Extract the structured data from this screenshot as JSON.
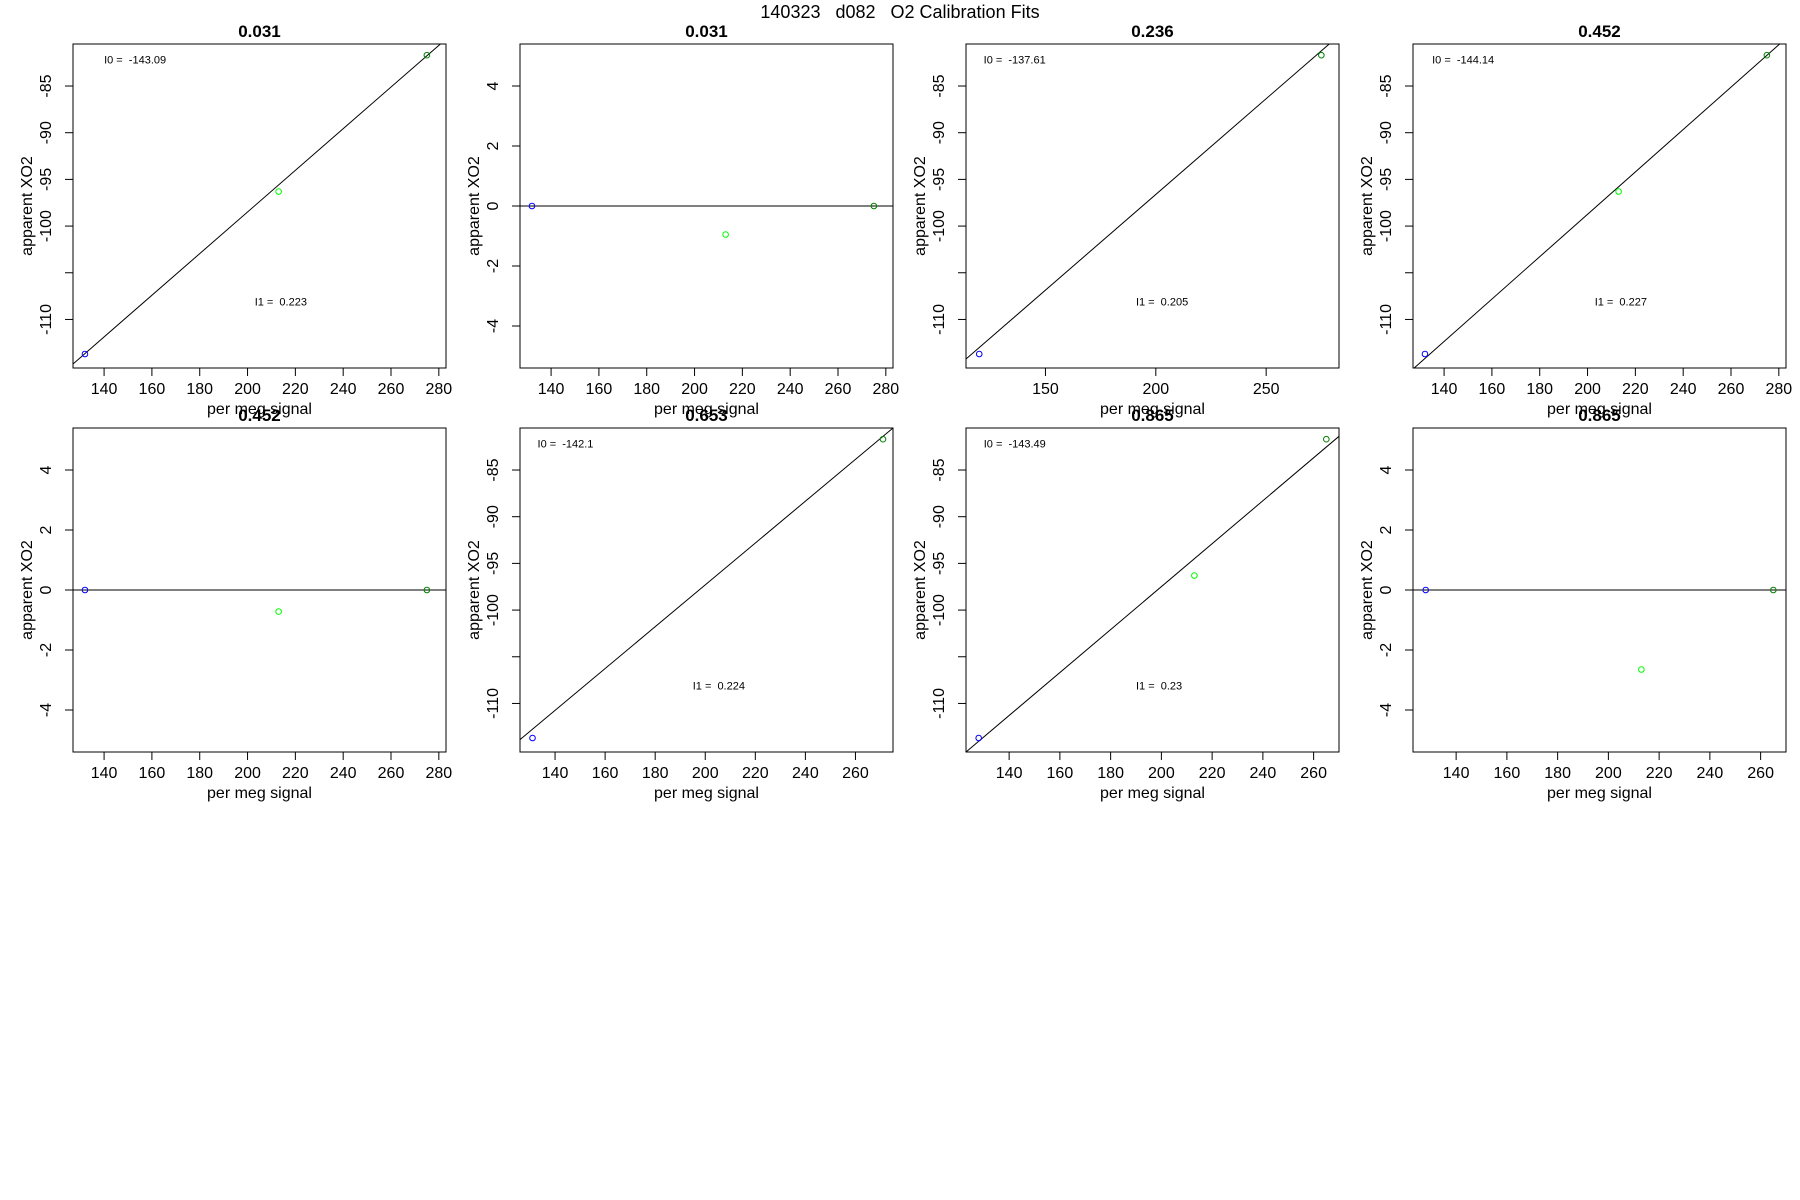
{
  "figure_title": "140323   d082   O2 Calibration Fits",
  "colors": {
    "axis": "#000000",
    "fit_line": "#000000",
    "point_blue": "#0000ff",
    "point_green": "#00ff00",
    "point_darkgreen": "#008000"
  },
  "chart_data": [
    {
      "type": "scatter",
      "title": "0.031",
      "xlabel": "per meg signal",
      "ylabel": "apparent XO2",
      "xlim": [
        127,
        283
      ],
      "ylim": [
        -115.2,
        -80.5
      ],
      "xticks": [
        140,
        160,
        180,
        200,
        220,
        240,
        260,
        280
      ],
      "yticks": [
        -110,
        -105,
        -100,
        -95,
        -90,
        -85
      ],
      "ytick_labels": [
        "-110",
        "",
        "-100",
        "-95",
        "-90",
        "-85"
      ],
      "points": [
        {
          "x": 132,
          "y": -113.7,
          "color": "blue"
        },
        {
          "x": 213,
          "y": -96.3,
          "color": "green"
        },
        {
          "x": 275,
          "y": -81.7,
          "color": "darkgreen"
        }
      ],
      "fit_line": {
        "intercept": -143.09,
        "slope": 0.223
      },
      "annotations": [
        {
          "label": "I0 = ",
          "value": "-143.09",
          "x": 140,
          "y": -82.6
        },
        {
          "label": "I1 = ",
          "value": "0.223",
          "x": 203,
          "y": -108.5
        }
      ]
    },
    {
      "type": "scatter",
      "title": "0.031",
      "xlabel": "per meg signal",
      "ylabel": "apparent XO2",
      "xlim": [
        127,
        283
      ],
      "ylim": [
        -5.4,
        5.4
      ],
      "xticks": [
        140,
        160,
        180,
        200,
        220,
        240,
        260,
        280
      ],
      "yticks": [
        -4,
        -2,
        0,
        2,
        4
      ],
      "ytick_labels": [
        "-4",
        "-2",
        "0",
        "2",
        "4"
      ],
      "points": [
        {
          "x": 132,
          "y": 0,
          "color": "blue"
        },
        {
          "x": 213,
          "y": -0.95,
          "color": "green"
        },
        {
          "x": 275,
          "y": 0,
          "color": "darkgreen"
        }
      ],
      "fit_line": {
        "intercept": 0,
        "slope": 0
      },
      "annotations": []
    },
    {
      "type": "scatter",
      "title": "0.236",
      "xlabel": "per meg signal",
      "ylabel": "apparent XO2",
      "xlim": [
        114,
        283
      ],
      "ylim": [
        -115.2,
        -80.5
      ],
      "xticks": [
        150,
        200,
        250
      ],
      "yticks": [
        -110,
        -105,
        -100,
        -95,
        -90,
        -85
      ],
      "ytick_labels": [
        "-110",
        "",
        "-100",
        "-95",
        "-90",
        "-85"
      ],
      "points": [
        {
          "x": 120,
          "y": -113.7,
          "color": "blue"
        },
        {
          "x": 275,
          "y": -81.7,
          "color": "darkgreen"
        }
      ],
      "fit_line": {
        "intercept": -137.61,
        "slope": 0.205
      },
      "annotations": [
        {
          "label": "I0 = ",
          "value": "-137.61",
          "x": 122,
          "y": -82.6
        },
        {
          "label": "I1 = ",
          "value": "0.205",
          "x": 191,
          "y": -108.5
        }
      ]
    },
    {
      "type": "scatter",
      "title": "0.452",
      "xlabel": "per meg signal",
      "ylabel": "apparent XO2",
      "xlim": [
        127,
        283
      ],
      "ylim": [
        -115.2,
        -80.5
      ],
      "xticks": [
        140,
        160,
        180,
        200,
        220,
        240,
        260,
        280
      ],
      "yticks": [
        -110,
        -105,
        -100,
        -95,
        -90,
        -85
      ],
      "ytick_labels": [
        "-110",
        "",
        "-100",
        "-95",
        "-90",
        "-85"
      ],
      "points": [
        {
          "x": 132,
          "y": -113.7,
          "color": "blue"
        },
        {
          "x": 213,
          "y": -96.3,
          "color": "green"
        },
        {
          "x": 275,
          "y": -81.7,
          "color": "darkgreen"
        }
      ],
      "fit_line": {
        "intercept": -144.14,
        "slope": 0.227
      },
      "annotations": [
        {
          "label": "I0 = ",
          "value": "-144.14",
          "x": 135,
          "y": -82.6
        },
        {
          "label": "I1 = ",
          "value": "0.227",
          "x": 203,
          "y": -108.5
        }
      ]
    },
    {
      "type": "scatter",
      "title": "0.452",
      "xlabel": "per meg signal",
      "ylabel": "apparent XO2",
      "xlim": [
        127,
        283
      ],
      "ylim": [
        -5.4,
        5.4
      ],
      "xticks": [
        140,
        160,
        180,
        200,
        220,
        240,
        260,
        280
      ],
      "yticks": [
        -4,
        -2,
        0,
        2,
        4
      ],
      "ytick_labels": [
        "-4",
        "-2",
        "0",
        "2",
        "4"
      ],
      "points": [
        {
          "x": 132,
          "y": 0,
          "color": "blue"
        },
        {
          "x": 213,
          "y": -0.72,
          "color": "green"
        },
        {
          "x": 275,
          "y": 0,
          "color": "darkgreen"
        }
      ],
      "fit_line": {
        "intercept": 0,
        "slope": 0
      },
      "annotations": []
    },
    {
      "type": "scatter",
      "title": "0.653",
      "xlabel": "per meg signal",
      "ylabel": "apparent XO2",
      "xlim": [
        126,
        275
      ],
      "ylim": [
        -115.2,
        -80.5
      ],
      "xticks": [
        140,
        160,
        180,
        200,
        220,
        240,
        260
      ],
      "yticks": [
        -110,
        -105,
        -100,
        -95,
        -90,
        -85
      ],
      "ytick_labels": [
        "-110",
        "",
        "-100",
        "-95",
        "-90",
        "-85"
      ],
      "points": [
        {
          "x": 131,
          "y": -113.7,
          "color": "blue"
        },
        {
          "x": 271,
          "y": -81.7,
          "color": "darkgreen"
        }
      ],
      "fit_line": {
        "intercept": -142.1,
        "slope": 0.224
      },
      "annotations": [
        {
          "label": "I0 = ",
          "value": "-142.1",
          "x": 133,
          "y": -82.6
        },
        {
          "label": "I1 = ",
          "value": "0.224",
          "x": 195,
          "y": -108.5
        }
      ]
    },
    {
      "type": "scatter",
      "title": "0.865",
      "xlabel": "per meg signal",
      "ylabel": "apparent XO2",
      "xlim": [
        123,
        270
      ],
      "ylim": [
        -115.2,
        -80.5
      ],
      "xticks": [
        140,
        160,
        180,
        200,
        220,
        240,
        260
      ],
      "yticks": [
        -110,
        -105,
        -100,
        -95,
        -90,
        -85
      ],
      "ytick_labels": [
        "-110",
        "",
        "-100",
        "-95",
        "-90",
        "-85"
      ],
      "points": [
        {
          "x": 128,
          "y": -113.7,
          "color": "blue"
        },
        {
          "x": 213,
          "y": -96.3,
          "color": "green"
        },
        {
          "x": 265,
          "y": -81.7,
          "color": "darkgreen"
        }
      ],
      "fit_line": {
        "intercept": -143.49,
        "slope": 0.23
      },
      "annotations": [
        {
          "label": "I0 = ",
          "value": "-143.49",
          "x": 130,
          "y": -82.6
        },
        {
          "label": "I1 = ",
          "value": "0.23",
          "x": 190,
          "y": -108.5
        }
      ]
    },
    {
      "type": "scatter",
      "title": "0.865",
      "xlabel": "per meg signal",
      "ylabel": "apparent XO2",
      "xlim": [
        123,
        270
      ],
      "ylim": [
        -5.4,
        5.4
      ],
      "xticks": [
        140,
        160,
        180,
        200,
        220,
        240,
        260
      ],
      "yticks": [
        -4,
        -2,
        0,
        2,
        4
      ],
      "ytick_labels": [
        "-4",
        "-2",
        "0",
        "2",
        "4"
      ],
      "points": [
        {
          "x": 128,
          "y": 0,
          "color": "blue"
        },
        {
          "x": 213,
          "y": -2.65,
          "color": "green"
        },
        {
          "x": 265,
          "y": 0,
          "color": "darkgreen"
        }
      ],
      "fit_line": {
        "intercept": 0,
        "slope": 0
      },
      "annotations": []
    }
  ]
}
